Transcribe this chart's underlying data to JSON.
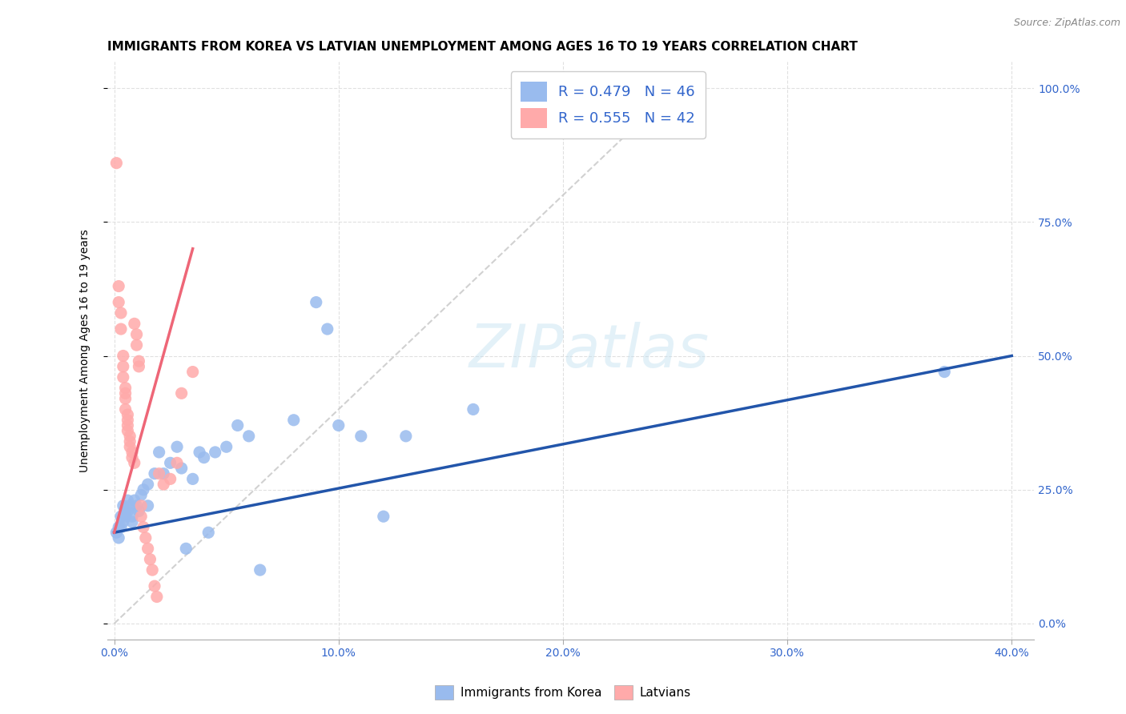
{
  "title": "IMMIGRANTS FROM KOREA VS LATVIAN UNEMPLOYMENT AMONG AGES 16 TO 19 YEARS CORRELATION CHART",
  "source": "Source: ZipAtlas.com",
  "ylabel": "Unemployment Among Ages 16 to 19 years",
  "x_tick_labels": [
    "0.0%",
    "10.0%",
    "20.0%",
    "30.0%",
    "40.0%"
  ],
  "x_tick_values": [
    0.0,
    10.0,
    20.0,
    30.0,
    40.0
  ],
  "y_tick_labels": [
    "0.0%",
    "25.0%",
    "50.0%",
    "75.0%",
    "100.0%"
  ],
  "y_tick_values": [
    0.0,
    25.0,
    50.0,
    75.0,
    100.0
  ],
  "xlim": [
    -0.3,
    41.0
  ],
  "ylim": [
    -3.0,
    105.0
  ],
  "legend_labels": [
    "Immigrants from Korea",
    "Latvians"
  ],
  "legend_r_n": [
    {
      "R": "0.479",
      "N": "46"
    },
    {
      "R": "0.555",
      "N": "42"
    }
  ],
  "blue_color": "#99BBEE",
  "pink_color": "#FFAAAA",
  "blue_line_color": "#2255AA",
  "pink_line_color": "#EE6677",
  "dashed_line_color": "#CCCCCC",
  "scatter_blue": [
    [
      0.1,
      17.0
    ],
    [
      0.2,
      18.0
    ],
    [
      0.2,
      16.0
    ],
    [
      0.3,
      20.0
    ],
    [
      0.3,
      18.0
    ],
    [
      0.4,
      22.0
    ],
    [
      0.4,
      19.0
    ],
    [
      0.5,
      21.0
    ],
    [
      0.5,
      20.0
    ],
    [
      0.6,
      23.0
    ],
    [
      0.6,
      21.0
    ],
    [
      0.7,
      22.0
    ],
    [
      0.8,
      20.0
    ],
    [
      0.8,
      19.0
    ],
    [
      0.9,
      23.0
    ],
    [
      1.0,
      22.0
    ],
    [
      1.1,
      21.0
    ],
    [
      1.2,
      24.0
    ],
    [
      1.3,
      25.0
    ],
    [
      1.5,
      26.0
    ],
    [
      1.5,
      22.0
    ],
    [
      1.8,
      28.0
    ],
    [
      2.0,
      32.0
    ],
    [
      2.2,
      28.0
    ],
    [
      2.5,
      30.0
    ],
    [
      2.8,
      33.0
    ],
    [
      3.0,
      29.0
    ],
    [
      3.2,
      14.0
    ],
    [
      3.5,
      27.0
    ],
    [
      3.8,
      32.0
    ],
    [
      4.0,
      31.0
    ],
    [
      4.2,
      17.0
    ],
    [
      4.5,
      32.0
    ],
    [
      5.0,
      33.0
    ],
    [
      5.5,
      37.0
    ],
    [
      6.0,
      35.0
    ],
    [
      6.5,
      10.0
    ],
    [
      8.0,
      38.0
    ],
    [
      9.0,
      60.0
    ],
    [
      9.5,
      55.0
    ],
    [
      10.0,
      37.0
    ],
    [
      11.0,
      35.0
    ],
    [
      12.0,
      20.0
    ],
    [
      13.0,
      35.0
    ],
    [
      16.0,
      40.0
    ],
    [
      37.0,
      47.0
    ]
  ],
  "scatter_pink": [
    [
      0.1,
      86.0
    ],
    [
      0.2,
      63.0
    ],
    [
      0.2,
      60.0
    ],
    [
      0.3,
      58.0
    ],
    [
      0.3,
      55.0
    ],
    [
      0.4,
      50.0
    ],
    [
      0.4,
      48.0
    ],
    [
      0.4,
      46.0
    ],
    [
      0.5,
      44.0
    ],
    [
      0.5,
      43.0
    ],
    [
      0.5,
      42.0
    ],
    [
      0.5,
      40.0
    ],
    [
      0.6,
      39.0
    ],
    [
      0.6,
      38.0
    ],
    [
      0.6,
      37.0
    ],
    [
      0.6,
      36.0
    ],
    [
      0.7,
      35.0
    ],
    [
      0.7,
      34.0
    ],
    [
      0.7,
      33.0
    ],
    [
      0.8,
      32.0
    ],
    [
      0.8,
      31.0
    ],
    [
      0.9,
      30.0
    ],
    [
      0.9,
      56.0
    ],
    [
      1.0,
      54.0
    ],
    [
      1.0,
      52.0
    ],
    [
      1.1,
      49.0
    ],
    [
      1.1,
      48.0
    ],
    [
      1.2,
      22.0
    ],
    [
      1.2,
      20.0
    ],
    [
      1.3,
      18.0
    ],
    [
      1.4,
      16.0
    ],
    [
      1.5,
      14.0
    ],
    [
      1.6,
      12.0
    ],
    [
      1.7,
      10.0
    ],
    [
      1.8,
      7.0
    ],
    [
      1.9,
      5.0
    ],
    [
      2.0,
      28.0
    ],
    [
      2.2,
      26.0
    ],
    [
      2.5,
      27.0
    ],
    [
      2.8,
      30.0
    ],
    [
      3.0,
      43.0
    ],
    [
      3.5,
      47.0
    ]
  ],
  "blue_line": {
    "x0": 0.0,
    "x1": 40.0,
    "y0": 17.0,
    "y1": 50.0
  },
  "pink_line": {
    "x0": 0.0,
    "x1": 3.5,
    "y0": 17.0,
    "y1": 70.0
  },
  "dashed_line": {
    "x0": 0.0,
    "x1": 25.0,
    "y0": 0.0,
    "y1": 100.0
  },
  "background_color": "#FFFFFF",
  "grid_color": "#DDDDDD",
  "title_fontsize": 11,
  "axis_label_fontsize": 10,
  "tick_fontsize": 10,
  "legend_fontsize": 13
}
